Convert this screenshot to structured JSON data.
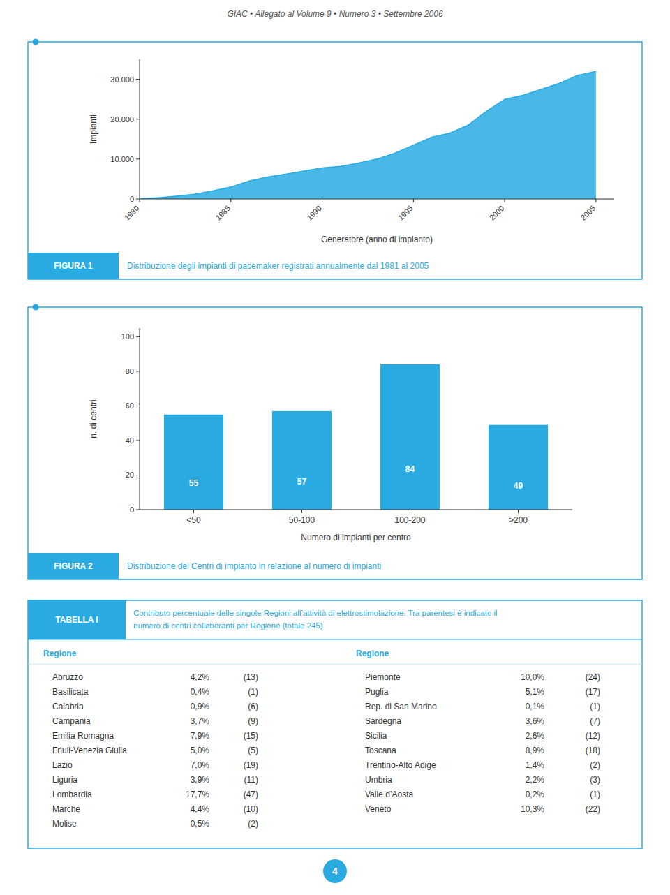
{
  "page_title": "GIAC • Allegato al Volume 9 • Numero 3 • Settembre 2006",
  "page_number": "4",
  "chart_data": [
    {
      "type": "area",
      "label": "FIGURA 1",
      "title": "Distribuzione degli impianti di pacemaker registrati annualmente dal 1981 al 2005",
      "xlabel": "Generatore (anno di impianto)",
      "ylabel": "Impianti",
      "x": [
        1980,
        1981,
        1982,
        1983,
        1984,
        1985,
        1986,
        1987,
        1988,
        1989,
        1990,
        1991,
        1992,
        1993,
        1994,
        1995,
        1996,
        1997,
        1998,
        1999,
        2000,
        2001,
        2002,
        2003,
        2004,
        2005
      ],
      "values": [
        100,
        300,
        700,
        1200,
        2000,
        3000,
        4500,
        5500,
        6200,
        7000,
        7800,
        8200,
        9000,
        10000,
        11500,
        13500,
        15500,
        16500,
        18500,
        22000,
        25000,
        26000,
        27500,
        29000,
        31000,
        32000
      ],
      "color": "#29ABE2",
      "xlim": [
        1980,
        2006
      ],
      "xticks": [
        1980,
        1985,
        1990,
        1995,
        2000,
        2005
      ],
      "ylim": [
        0,
        35000
      ],
      "yticks": [
        0,
        {
          "value": 10000,
          "label": "10.000"
        },
        {
          "value": 20000,
          "label": "20.000"
        },
        {
          "value": 30000,
          "label": "30.000"
        }
      ]
    },
    {
      "type": "bar",
      "label": "FIGURA 2",
      "title": "Distribuzione dei Centri di impianto in relazione al numero di impianti",
      "xlabel": "Numero di impianti per centro",
      "ylabel": "n. di centri",
      "categories": [
        "<50",
        "50-100",
        "100-200",
        ">200"
      ],
      "values": [
        55,
        57,
        84,
        49
      ],
      "color": "#29ABE2",
      "ylim": [
        0,
        105
      ],
      "yticks": [
        0,
        20,
        40,
        60,
        80,
        100
      ],
      "data_labels": true
    }
  ],
  "table": {
    "label": "TABELLA I",
    "title": [
      "Contributo percentuale delle singole Regioni all’attività di elettrostimolazione. Tra parentesi è indicato il",
      "numero di centri collaboranti per Regione (totale 245)"
    ],
    "column_header": "Regione",
    "columns": [
      {
        "rows": [
          {
            "region": "Abruzzo",
            "share": "4,2%",
            "centres": "(13)"
          },
          {
            "region": "Basilicata",
            "share": "0,4%",
            "centres": "(1)"
          },
          {
            "region": "Calabria",
            "share": "0,9%",
            "centres": "(6)"
          },
          {
            "region": "Campania",
            "share": "3,7%",
            "centres": "(9)"
          },
          {
            "region": "Emilia Romagna",
            "share": "7,9%",
            "centres": "(15)"
          },
          {
            "region": "Friuli-Venezia Giulia",
            "share": "5,0%",
            "centres": "(5)"
          },
          {
            "region": "Lazio",
            "share": "7,0%",
            "centres": "(19)"
          },
          {
            "region": "Liguria",
            "share": "3,9%",
            "centres": "(11)"
          },
          {
            "region": "Lombardia",
            "share": "17,7%",
            "centres": "(47)"
          },
          {
            "region": "Marche",
            "share": "4,4%",
            "centres": "(10)"
          },
          {
            "region": "Molise",
            "share": "0,5%",
            "centres": "(2)"
          }
        ]
      },
      {
        "rows": [
          {
            "region": "Piemonte",
            "share": "10,0%",
            "centres": "(24)"
          },
          {
            "region": "Puglia",
            "share": "5,1%",
            "centres": "(17)"
          },
          {
            "region": "Rep. di San Marino",
            "share": "0,1%",
            "centres": "(1)"
          },
          {
            "region": "Sardegna",
            "share": "3,6%",
            "centres": "(7)"
          },
          {
            "region": "Sicilia",
            "share": "2,6%",
            "centres": "(12)"
          },
          {
            "region": "Toscana",
            "share": "8,9%",
            "centres": "(18)"
          },
          {
            "region": "Trentino-Alto Adige",
            "share": "1,4%",
            "centres": "(2)"
          },
          {
            "region": "Umbria",
            "share": "2,2%",
            "centres": "(3)"
          },
          {
            "region": "Valle d’Aosta",
            "share": "0,2%",
            "centres": "(1)"
          },
          {
            "region": "Veneto",
            "share": "10,3%",
            "centres": "(22)"
          }
        ]
      }
    ]
  }
}
